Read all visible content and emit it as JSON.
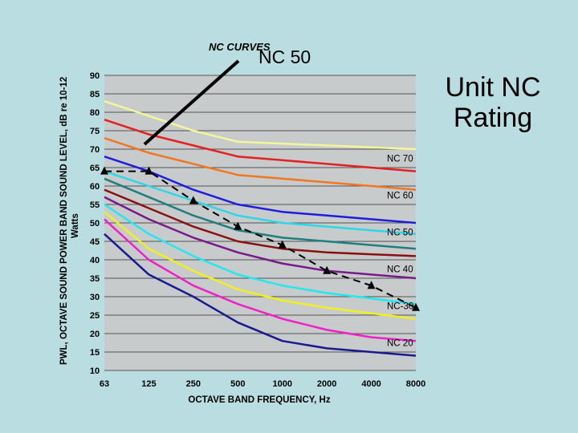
{
  "slide_title": [
    "Unit NC",
    "Rating"
  ],
  "chart_data": {
    "type": "line",
    "title": "NC CURVES",
    "annotation": "NC 50",
    "xlabel": "OCTAVE BAND FREQUENCY, Hz",
    "ylabel": "PWL, OCTAVE SOUND POWER BAND SOUND LEVEL, dB re 10-12 Watts",
    "categories": [
      "63",
      "125",
      "250",
      "500",
      "1000",
      "2000",
      "4000",
      "8000"
    ],
    "y_ticks": [
      "90",
      "85",
      "80",
      "75",
      "70",
      "65",
      "60",
      "55",
      "50",
      "45",
      "40",
      "35",
      "30",
      "25",
      "20",
      "15",
      "10"
    ],
    "ylim": [
      10,
      90
    ],
    "grid": "horizontal",
    "curve_labels": [
      "NC 70",
      "NC 60",
      "NC 50",
      "NC 40",
      "NC-30",
      "NC 20"
    ],
    "series": [
      {
        "color": "#f5f59a",
        "values": [
          83,
          79,
          75,
          72,
          71.5,
          71,
          70.5,
          70
        ]
      },
      {
        "color": "#e52020",
        "values": [
          78,
          74,
          71,
          68,
          67,
          66,
          65,
          64
        ]
      },
      {
        "color": "#f07820",
        "values": [
          73,
          69,
          66,
          63,
          62,
          61,
          60,
          59
        ]
      },
      {
        "color": "#1d1de0",
        "values": [
          68,
          64,
          59,
          55,
          53,
          52,
          51,
          50
        ]
      },
      {
        "color": "#2ad8e8",
        "values": [
          64,
          60,
          56,
          52,
          50,
          49,
          48,
          47
        ]
      },
      {
        "color": "#1f7f7f",
        "values": [
          62,
          57,
          52,
          48,
          46,
          45,
          44,
          43
        ]
      },
      {
        "color": "#8a1010",
        "values": [
          59,
          54,
          49,
          45,
          43,
          42,
          41.5,
          41
        ]
      },
      {
        "color": "#7a1a8a",
        "values": [
          57,
          51,
          46,
          42,
          39,
          37,
          36,
          35
        ]
      },
      {
        "color": "#22e8f0",
        "values": [
          55,
          47,
          41,
          36,
          33,
          31,
          29.5,
          28
        ]
      },
      {
        "color": "#f0f020",
        "values": [
          53,
          43,
          37,
          32,
          29,
          27,
          25.5,
          24
        ]
      },
      {
        "color": "#f020c8",
        "values": [
          51,
          40,
          33,
          28,
          24,
          21,
          19,
          18
        ]
      },
      {
        "color": "#1a1a90",
        "values": [
          47,
          36,
          30,
          23,
          18,
          16,
          15,
          14
        ]
      }
    ],
    "measured": {
      "x": [
        "63",
        "125",
        "250",
        "500",
        "1000",
        "2000",
        "4000",
        "8000"
      ],
      "values": [
        64,
        64,
        56,
        49,
        44,
        37,
        33,
        27
      ]
    }
  }
}
